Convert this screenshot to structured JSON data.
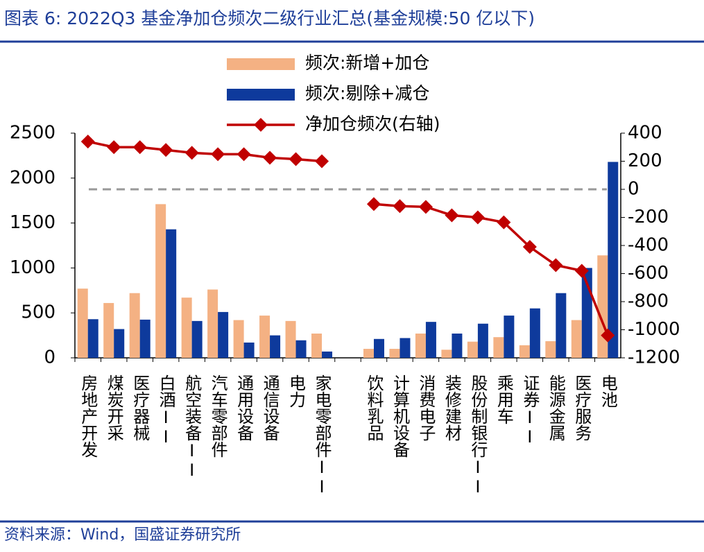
{
  "chart_data": {
    "type": "bar-line",
    "title": "图表 6:  2022Q3 基金净加仓频次二级行业汇总(基金规模:50 亿以下)",
    "source": "资料来源：Wind，国盛证券研究所",
    "categories": [
      "房地产开发",
      "煤炭开采",
      "医疗器械",
      "白酒II",
      "航空装备II",
      "汽车零部件",
      "通用设备",
      "通信设备",
      "电力",
      "家电零部件II",
      null,
      "饮料乳品",
      "计算机设备",
      "消费电子",
      "装修建材",
      "股份制银行II",
      "乘用车",
      "证券II",
      "能源金属",
      "医疗服务",
      "电池"
    ],
    "series": [
      {
        "name": "频次:新增+加仓",
        "color": "#f4b183",
        "type": "bar",
        "values": [
          770,
          610,
          720,
          1710,
          670,
          760,
          420,
          470,
          410,
          270,
          null,
          100,
          100,
          270,
          90,
          180,
          230,
          140,
          185,
          420,
          1140
        ]
      },
      {
        "name": "频次:剔除+减仓",
        "color": "#0e3a9c",
        "type": "bar",
        "values": [
          430,
          320,
          425,
          1430,
          410,
          510,
          170,
          250,
          195,
          70,
          null,
          210,
          220,
          400,
          270,
          380,
          470,
          550,
          720,
          1000,
          2180
        ]
      },
      {
        "name": "净加仓频次(右轴)",
        "color": "#c00000",
        "type": "line",
        "axis": "y2",
        "values": [
          340,
          300,
          300,
          280,
          260,
          250,
          250,
          225,
          215,
          200,
          null,
          -105,
          -120,
          -125,
          -185,
          -200,
          -235,
          -410,
          -540,
          -580,
          -1040
        ]
      }
    ],
    "ylim": [
      0,
      2500
    ],
    "yticks": [
      0,
      500,
      1000,
      1500,
      2000,
      2500
    ],
    "y2lim": [
      -1200,
      400
    ],
    "y2ticks": [
      -1200,
      -1000,
      -800,
      -600,
      -400,
      -200,
      0,
      200,
      400
    ]
  }
}
